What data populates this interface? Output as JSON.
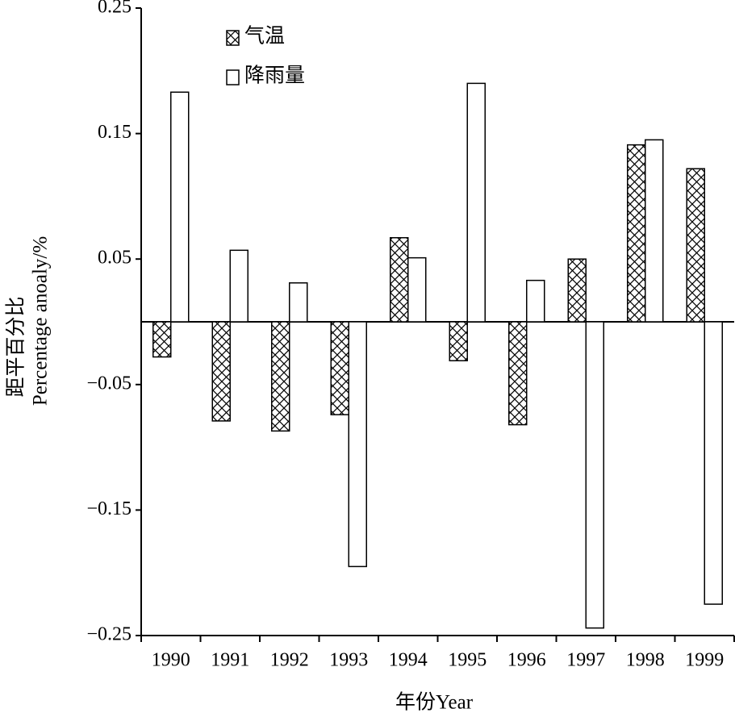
{
  "chart_data": {
    "type": "bar",
    "x_label": "年份Year",
    "y_label": [
      "距平百分比",
      "Percentage anoaly/%"
    ],
    "categories": [
      "1990",
      "1991",
      "1992",
      "1993",
      "1994",
      "1995",
      "1996",
      "1997",
      "1998",
      "1999"
    ],
    "series": [
      {
        "name": "气温",
        "color": "#000000",
        "pattern": "crosshatch",
        "values": [
          -0.028,
          -0.079,
          -0.087,
          -0.074,
          0.067,
          -0.031,
          -0.082,
          0.05,
          0.141,
          0.122
        ]
      },
      {
        "name": "降雨量",
        "color": "#000000",
        "values": [
          0.183,
          0.057,
          0.031,
          -0.195,
          0.051,
          0.19,
          0.033,
          -0.244,
          0.145,
          -0.225
        ]
      }
    ],
    "ylim": [
      -0.25,
      0.25
    ],
    "yticks": [
      {
        "value": -0.25,
        "label": "−0.25"
      },
      {
        "value": -0.15,
        "label": "−0.15"
      },
      {
        "value": -0.05,
        "label": "−0.05"
      },
      0.05,
      0.15,
      0.25
    ],
    "legend": "upper left"
  }
}
